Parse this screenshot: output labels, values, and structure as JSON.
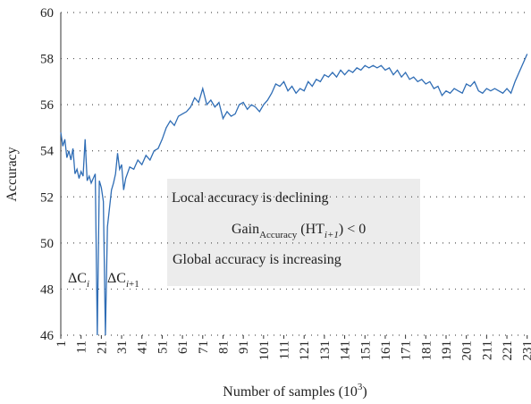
{
  "chart_data": {
    "type": "line",
    "x_label": [
      {
        "text": "Number of samples (10"
      },
      {
        "text": "3",
        "sup": true
      },
      {
        "text": ")"
      }
    ],
    "y_label": "Accuracy",
    "x": [
      1,
      2,
      3,
      4,
      5,
      6,
      7,
      8,
      9,
      10,
      11,
      12,
      13,
      14,
      15,
      16,
      17,
      18,
      19,
      20,
      21,
      22,
      23,
      24,
      25,
      26,
      27,
      28,
      29,
      30,
      31,
      32,
      33,
      35,
      37,
      39,
      41,
      43,
      45,
      47,
      49,
      51,
      53,
      55,
      57,
      59,
      61,
      63,
      65,
      67,
      69,
      71,
      73,
      75,
      77,
      79,
      81,
      83,
      85,
      87,
      89,
      91,
      93,
      95,
      97,
      99,
      101,
      103,
      105,
      107,
      109,
      111,
      113,
      115,
      117,
      119,
      121,
      123,
      125,
      127,
      129,
      131,
      133,
      135,
      137,
      139,
      141,
      143,
      145,
      147,
      149,
      151,
      153,
      155,
      157,
      159,
      161,
      163,
      165,
      167,
      169,
      171,
      173,
      175,
      177,
      179,
      181,
      183,
      185,
      187,
      189,
      191,
      193,
      195,
      197,
      199,
      201,
      203,
      205,
      207,
      209,
      211,
      213,
      215,
      217,
      219,
      221,
      223,
      225,
      227,
      229,
      231
    ],
    "series": [
      {
        "name": "Accuracy",
        "color": "#2f6db5",
        "values": [
          54.8,
          54.2,
          54.5,
          53.7,
          54.0,
          53.6,
          54.1,
          53.0,
          53.2,
          52.8,
          53.1,
          52.9,
          54.5,
          52.7,
          52.9,
          52.6,
          52.8,
          53.0,
          46,
          52.7,
          52.4,
          51.8,
          46,
          50.7,
          51.5,
          52.3,
          52.6,
          53.0,
          53.9,
          53.2,
          53.4,
          52.3,
          52.8,
          53.3,
          53.2,
          53.6,
          53.4,
          53.8,
          53.6,
          54.0,
          54.1,
          54.5,
          55.0,
          55.3,
          55.1,
          55.5,
          55.6,
          55.7,
          55.9,
          56.3,
          56.1,
          56.7,
          56.0,
          56.2,
          55.9,
          56.1,
          55.4,
          55.7,
          55.5,
          55.6,
          56.0,
          56.1,
          55.8,
          56.0,
          55.9,
          55.7,
          56.0,
          56.2,
          56.5,
          56.9,
          56.8,
          57.0,
          56.6,
          56.8,
          56.5,
          56.7,
          56.6,
          57.0,
          56.8,
          57.1,
          57.0,
          57.3,
          57.2,
          57.4,
          57.2,
          57.5,
          57.3,
          57.5,
          57.4,
          57.6,
          57.5,
          57.7,
          57.6,
          57.7,
          57.6,
          57.7,
          57.5,
          57.6,
          57.3,
          57.5,
          57.2,
          57.4,
          57.1,
          57.2,
          57.0,
          57.1,
          56.9,
          57.0,
          56.7,
          56.8,
          56.4,
          56.6,
          56.5,
          56.7,
          56.6,
          56.5,
          56.9,
          56.8,
          57.0,
          56.6,
          56.5,
          56.7,
          56.6,
          56.7,
          56.6,
          56.5,
          56.7,
          56.5,
          57.0,
          57.4,
          57.8,
          58.2
        ]
      }
    ],
    "xlim": [
      1,
      232
    ],
    "xticks": [
      1,
      11,
      21,
      31,
      41,
      51,
      61,
      71,
      81,
      91,
      101,
      111,
      121,
      131,
      141,
      151,
      161,
      171,
      181,
      191,
      201,
      211,
      221,
      231
    ],
    "ylim": [
      46,
      60
    ],
    "yticks": [
      46,
      48,
      50,
      52,
      54,
      56,
      58,
      60
    ],
    "grid": true,
    "annotations": [
      {
        "parts": [
          {
            "text": "Local accuracy is declining"
          }
        ]
      },
      {
        "parts": [
          {
            "text": "Gain"
          },
          {
            "text": "Accuracy",
            "sub": true
          },
          {
            "text": " (HT"
          },
          {
            "text": "i+1",
            "sub": true,
            "italic": true
          },
          {
            "text": ") < 0"
          }
        ]
      },
      {
        "parts": [
          {
            "text": "Global accuracy is increasing"
          }
        ]
      },
      {
        "parts": [
          {
            "text": "ΔC"
          },
          {
            "text": "i",
            "sub": true,
            "italic": true
          }
        ]
      },
      {
        "parts": [
          {
            "text": "ΔC"
          },
          {
            "text": "i",
            "sub": true,
            "italic": true
          },
          {
            "text": "+1",
            "sub": true
          }
        ]
      }
    ]
  }
}
